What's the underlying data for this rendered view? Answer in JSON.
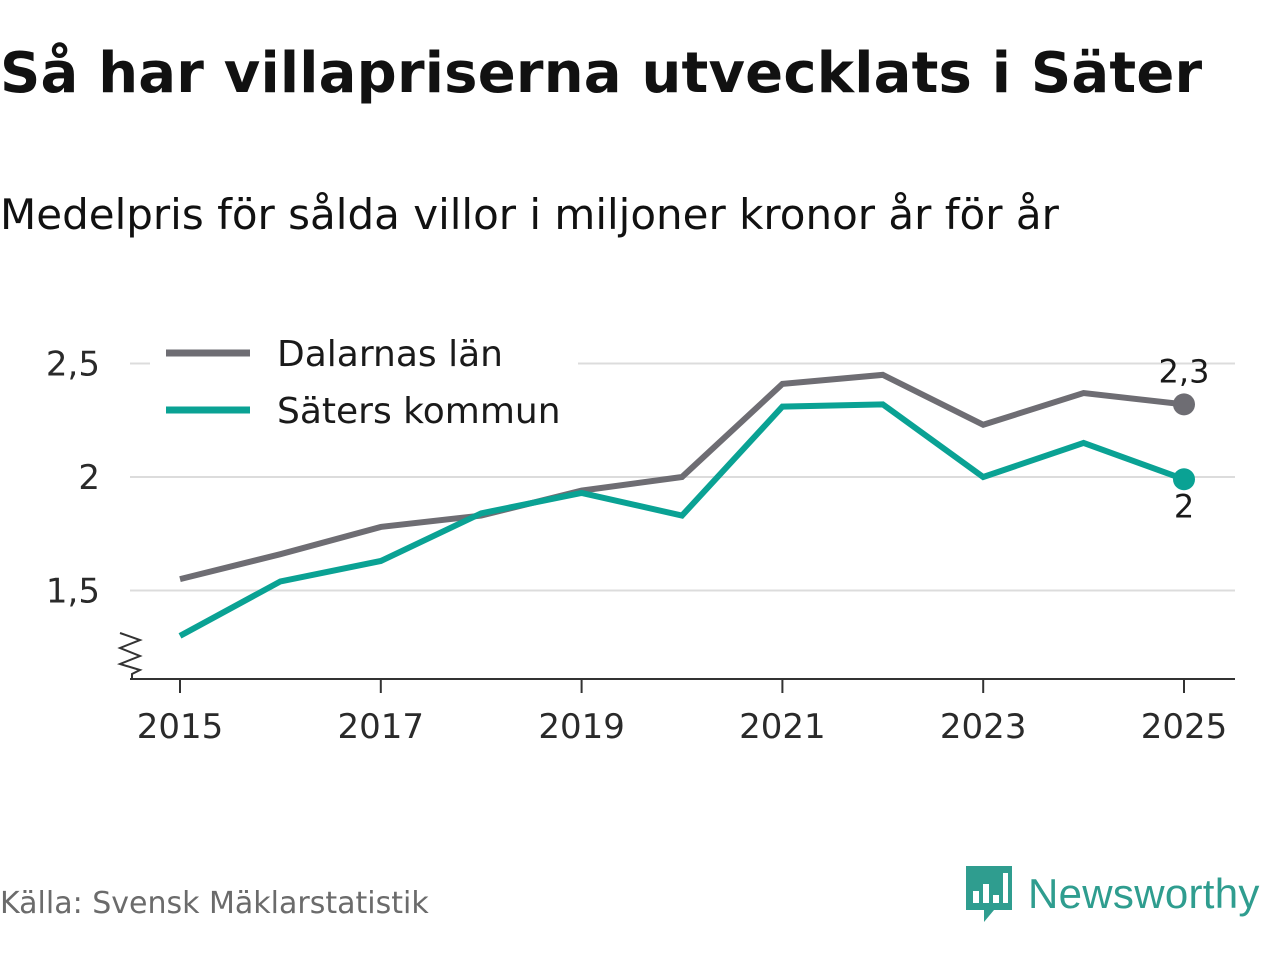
{
  "colors": {
    "dalarna": "#6e6d73",
    "sater": "#0aa294",
    "grid": "#dcdcdc",
    "axis": "#333333",
    "brand": "#2f9d8f"
  },
  "chart_data": {
    "type": "line",
    "title": "Så har villapriserna utvecklats i Säter",
    "subtitle": "Medelpris för sålda villor i miljoner kronor år för år",
    "xlabel": "",
    "ylabel": "",
    "x": [
      2015,
      2016,
      2017,
      2018,
      2019,
      2020,
      2021,
      2022,
      2023,
      2024,
      2025
    ],
    "xticks": [
      "2015",
      "2017",
      "2019",
      "2021",
      "2023",
      "2025"
    ],
    "yticks": [
      {
        "value": 1.5,
        "label": "1,5"
      },
      {
        "value": 2,
        "label": "2"
      },
      {
        "value": 2.5,
        "label": "2,5"
      }
    ],
    "ylim": [
      1.1,
      2.6
    ],
    "axis_break": true,
    "grid": true,
    "legend_position": "top-left",
    "series": [
      {
        "name": "Dalarnas län",
        "key": "dalarna",
        "values": [
          1.55,
          1.66,
          1.78,
          1.83,
          1.94,
          2.0,
          2.41,
          2.45,
          2.23,
          2.37,
          2.32
        ],
        "end_label": "2,3"
      },
      {
        "name": "Säters kommun",
        "key": "sater",
        "values": [
          1.3,
          1.54,
          1.63,
          1.84,
          1.93,
          1.83,
          2.31,
          2.32,
          2.0,
          2.15,
          1.99
        ],
        "end_label": "2"
      }
    ]
  },
  "footer": {
    "source": "Källa: Svensk Mäklarstatistik",
    "brand": "Newsworthy"
  }
}
